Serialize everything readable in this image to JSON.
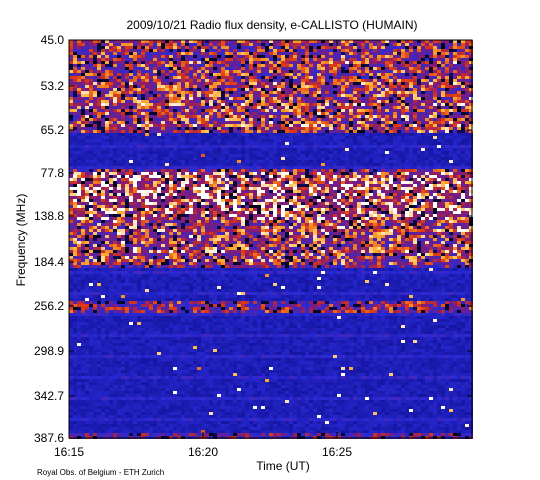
{
  "chart_data": {
    "type": "heatmap",
    "title": "2009/10/21  Radio flux density, e-CALLISTO (HUMAIN)",
    "xlabel": "Time (UT)",
    "ylabel": "Frequency (MHz)",
    "x_ticks": [
      "16:15",
      "16:20",
      "16:25"
    ],
    "x_tick_minutes": [
      0,
      5,
      10
    ],
    "x_range_minutes": [
      0,
      14.6
    ],
    "y_ticks": [
      "45.0",
      "53.2",
      "65.2",
      "77.8",
      "138.8",
      "184.4",
      "256.2",
      "298.9",
      "342.7",
      "387.6"
    ],
    "y_order": "top-to-bottom",
    "credit": "Royal Obs. of Belgium - ETH Zurich",
    "colormap": [
      "#000000",
      "#1414a0",
      "#2a2ad6",
      "#8a1a6e",
      "#e03a10",
      "#ffb030",
      "#ffffff"
    ],
    "features": [
      {
        "freq_from": "45.0",
        "freq_to": "53.2",
        "intensity": 0.62,
        "type": "burst_band"
      },
      {
        "freq_from": "53.2",
        "freq_to": "65.2",
        "intensity": 0.7,
        "type": "burst_band"
      },
      {
        "freq_from": "77.8",
        "freq_to": "77.8",
        "intensity": 0.55,
        "type": "narrow_line"
      },
      {
        "freq_from": "77.8",
        "freq_to": "138.8",
        "intensity": 0.95,
        "type": "strong_band"
      },
      {
        "freq_from": "138.8",
        "freq_to": "184.4",
        "intensity": 0.72,
        "type": "narrow_line"
      },
      {
        "freq_from": "184.4",
        "freq_to": "184.4",
        "intensity": 0.45,
        "type": "narrow_line"
      },
      {
        "freq_from": "256.2",
        "freq_to": "256.2",
        "intensity": 0.5,
        "type": "narrow_line"
      },
      {
        "freq_from": "387.6",
        "freq_to": "387.6",
        "intensity": 0.4,
        "type": "edge_noise"
      }
    ]
  }
}
